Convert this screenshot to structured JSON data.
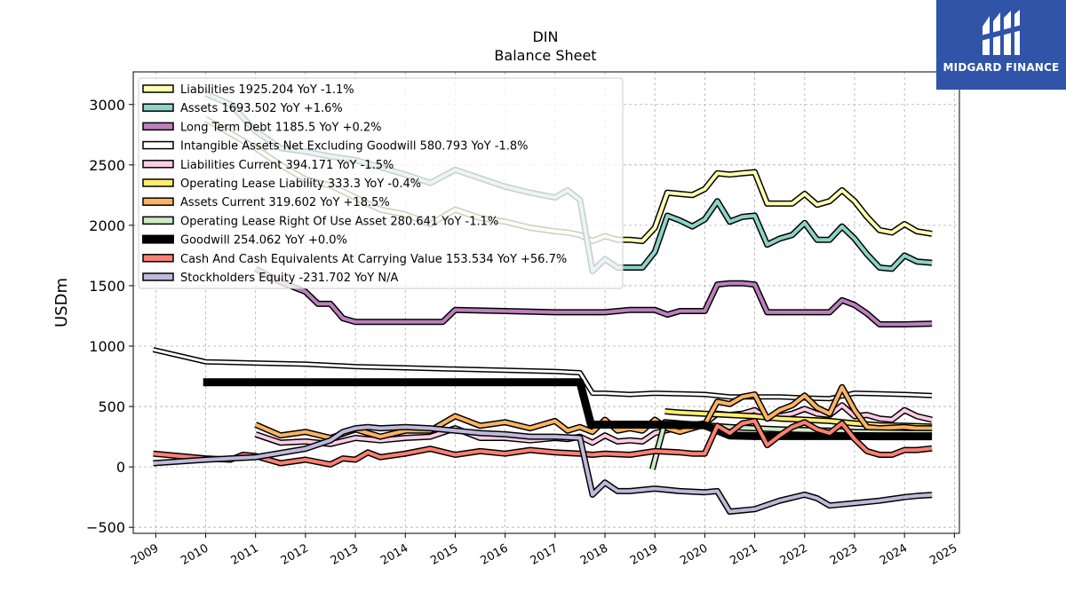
{
  "chart_data": {
    "type": "line",
    "title": "DIN",
    "subtitle": "Balance  Sheet",
    "ylabel": "USDm",
    "xlabel": "",
    "xlim": [
      2008.55,
      2025.1
    ],
    "ylim": [
      -550,
      3270
    ],
    "yticks": [
      -500,
      0,
      500,
      1000,
      1500,
      2000,
      2500,
      3000
    ],
    "ytick_labels": [
      "−500",
      "0",
      "500",
      "1000",
      "1500",
      "2000",
      "2500",
      "3000"
    ],
    "xticks": [
      2009,
      2010,
      2011,
      2012,
      2013,
      2014,
      2015,
      2016,
      2017,
      2018,
      2019,
      2020,
      2021,
      2022,
      2023,
      2024,
      2025
    ],
    "grid": true,
    "legend_position": "upper-left",
    "series": [
      {
        "name": "Liabilities",
        "legend": "Liabilities  1925.204 YoY -1.1%",
        "color": "#ffffb3",
        "width": 4,
        "x": [
          2010,
          2011,
          2011.5,
          2012,
          2012.5,
          2013,
          2013.5,
          2014,
          2014.5,
          2015,
          2015.5,
          2016,
          2016.5,
          2017,
          2017.25,
          2017.5,
          2017.75,
          2018,
          2018.25,
          2018.5,
          2018.75,
          2019,
          2019.25,
          2019.5,
          2019.75,
          2020,
          2020.25,
          2020.5,
          2020.75,
          2021,
          2021.25,
          2021.5,
          2021.75,
          2022,
          2022.25,
          2022.5,
          2022.75,
          2023,
          2023.25,
          2023.5,
          2023.75,
          2024,
          2024.25,
          2024.55
        ],
        "y": [
          2880,
          2640,
          2500,
          2380,
          2330,
          2230,
          2130,
          2090,
          2010,
          2130,
          2060,
          2030,
          1980,
          1950,
          1940,
          1920,
          1870,
          1910,
          1880,
          1880,
          1870,
          1980,
          2270,
          2260,
          2250,
          2300,
          2430,
          2420,
          2430,
          2440,
          2180,
          2180,
          2180,
          2260,
          2170,
          2200,
          2290,
          2200,
          2070,
          1960,
          1940,
          2010,
          1950,
          1930
        ]
      },
      {
        "name": "Assets",
        "legend": "Assets  1693.502 YoY +1.6%",
        "color": "#8dd3c7",
        "width": 4,
        "x": [
          2010,
          2010.5,
          2011,
          2011.5,
          2012,
          2012.5,
          2013,
          2013.5,
          2014,
          2014.5,
          2015,
          2015.5,
          2016,
          2016.5,
          2017,
          2017.25,
          2017.5,
          2017.75,
          2018,
          2018.25,
          2018.5,
          2018.75,
          2019,
          2019.25,
          2019.5,
          2019.75,
          2020,
          2020.25,
          2020.5,
          2020.75,
          2021,
          2021.25,
          2021.5,
          2021.75,
          2022,
          2022.25,
          2022.5,
          2022.75,
          2023,
          2023.25,
          2023.5,
          2023.75,
          2024,
          2024.25,
          2024.55
        ],
        "y": [
          3090,
          3000,
          2780,
          2640,
          2610,
          2570,
          2540,
          2480,
          2420,
          2350,
          2460,
          2390,
          2320,
          2270,
          2230,
          2290,
          2210,
          1620,
          1720,
          1650,
          1650,
          1650,
          1780,
          2080,
          2040,
          1990,
          2050,
          2200,
          2030,
          2070,
          2080,
          1840,
          1890,
          1920,
          2020,
          1880,
          1880,
          1990,
          1890,
          1760,
          1650,
          1640,
          1750,
          1700,
          1690
        ]
      },
      {
        "name": "Long Term Debt",
        "legend": "Long Term Debt  1185.5 YoY +0.2%",
        "color": "#bc80bd",
        "width": 4,
        "x": [
          2011,
          2011.5,
          2012,
          2012.25,
          2012.5,
          2012.75,
          2013,
          2013.5,
          2014,
          2014.5,
          2014.75,
          2015,
          2016,
          2017,
          2018,
          2018.5,
          2019,
          2019.25,
          2019.5,
          2020,
          2020.25,
          2020.5,
          2020.75,
          2021,
          2021.25,
          2021.5,
          2022,
          2022.5,
          2022.75,
          2023,
          2023.25,
          2023.5,
          2024,
          2024.55
        ],
        "y": [
          1640,
          1530,
          1450,
          1350,
          1350,
          1230,
          1200,
          1200,
          1200,
          1200,
          1200,
          1300,
          1290,
          1280,
          1280,
          1300,
          1300,
          1260,
          1290,
          1290,
          1510,
          1520,
          1520,
          1510,
          1280,
          1280,
          1280,
          1280,
          1380,
          1340,
          1270,
          1180,
          1180,
          1185
        ]
      },
      {
        "name": "Intangible Assets Net Excluding Goodwill",
        "legend": "Intangible Assets Net Excluding Goodwill  580.793 YoY -1.8%",
        "color": "#ffffff",
        "width": 3,
        "x": [
          2008.95,
          2010,
          2011,
          2012,
          2013,
          2014,
          2015,
          2016,
          2017,
          2017.5,
          2017.75,
          2018,
          2018.5,
          2019,
          2019.5,
          2020,
          2020.5,
          2021,
          2021.5,
          2022,
          2022.5,
          2023,
          2023.5,
          2024,
          2024.55
        ],
        "y": [
          970,
          870,
          860,
          850,
          830,
          820,
          810,
          800,
          790,
          780,
          610,
          610,
          600,
          610,
          605,
          600,
          580,
          580,
          580,
          570,
          565,
          610,
          605,
          600,
          590
        ]
      },
      {
        "name": "Liabilities Current",
        "legend": "Liabilities Current  394.171 YoY -1.5%",
        "color": "#fccde5",
        "width": 4,
        "x": [
          2011,
          2011.5,
          2012,
          2012.5,
          2013,
          2013.5,
          2014,
          2014.5,
          2015,
          2015.5,
          2016,
          2016.5,
          2017,
          2017.25,
          2017.5,
          2017.75,
          2018,
          2018.25,
          2018.5,
          2018.75,
          2019,
          2019.5,
          2020,
          2020.25,
          2020.5,
          2020.75,
          2021,
          2021.25,
          2021.5,
          2021.75,
          2022,
          2022.25,
          2022.5,
          2022.75,
          2023,
          2023.25,
          2023.5,
          2023.75,
          2024,
          2024.25,
          2024.55
        ],
        "y": [
          270,
          200,
          210,
          190,
          240,
          220,
          240,
          250,
          320,
          240,
          240,
          220,
          240,
          230,
          250,
          200,
          260,
          210,
          220,
          210,
          280,
          330,
          360,
          440,
          430,
          440,
          470,
          400,
          420,
          440,
          480,
          440,
          430,
          510,
          420,
          430,
          400,
          390,
          470,
          420,
          390
        ]
      },
      {
        "name": "Operating Lease Liability",
        "legend": "Operating Lease Liability  333.3 YoY -0.4%",
        "color": "#ffed6f",
        "width": 4,
        "x": [
          2019.2,
          2019.5,
          2020,
          2020.5,
          2021,
          2021.5,
          2022,
          2022.5,
          2023,
          2023.5,
          2024,
          2024.55
        ],
        "y": [
          460,
          450,
          440,
          430,
          420,
          400,
          390,
          380,
          360,
          345,
          340,
          333
        ]
      },
      {
        "name": "Assets Current",
        "legend": "Assets Current  319.602 YoY +18.5%",
        "color": "#fdb462",
        "width": 4,
        "x": [
          2011,
          2011.5,
          2012,
          2012.5,
          2013,
          2013.5,
          2014,
          2014.5,
          2015,
          2015.5,
          2016,
          2016.5,
          2017,
          2017.25,
          2017.5,
          2017.75,
          2018,
          2018.25,
          2018.5,
          2018.75,
          2019,
          2019.25,
          2019.5,
          2020,
          2020.25,
          2020.5,
          2020.75,
          2021,
          2021.25,
          2021.5,
          2021.75,
          2022,
          2022.25,
          2022.5,
          2022.75,
          2023,
          2023.25,
          2023.5,
          2024,
          2024.25,
          2024.55
        ],
        "y": [
          350,
          260,
          290,
          240,
          310,
          250,
          300,
          300,
          420,
          340,
          370,
          320,
          380,
          300,
          330,
          290,
          390,
          300,
          320,
          300,
          390,
          320,
          290,
          350,
          540,
          520,
          580,
          600,
          400,
          470,
          510,
          590,
          490,
          440,
          660,
          470,
          330,
          320,
          330,
          320,
          320
        ]
      },
      {
        "name": "Operating Lease Right Of Use Asset",
        "legend": "Operating Lease Right Of Use Asset  280.641 YoY -1.1%",
        "color": "#ccebc5",
        "width": 4,
        "x": [
          2018.95,
          2019.2,
          2019.5,
          2020,
          2020.5,
          2021,
          2021.5,
          2022,
          2022.5,
          2023,
          2023.5,
          2024,
          2024.55
        ],
        "y": [
          -20,
          370,
          360,
          345,
          330,
          320,
          310,
          305,
          300,
          290,
          285,
          282,
          281
        ]
      },
      {
        "name": "Goodwill",
        "legend": "Goodwill  254.062 YoY +0.0%",
        "color": "#000000",
        "width": 9,
        "x": [
          2009.95,
          2017.5,
          2017.72,
          2018.5,
          2019,
          2020,
          2020.5,
          2021,
          2021.5,
          2022,
          2022.5,
          2023,
          2023.5,
          2024,
          2024.55
        ],
        "y": [
          700,
          700,
          350,
          350,
          350,
          345,
          260,
          255,
          255,
          255,
          255,
          255,
          254,
          254,
          254
        ]
      },
      {
        "name": "Cash And Cash Equivalents At Carrying Value",
        "legend": "Cash And Cash Equivalents At Carrying Value  153.534 YoY +56.7%",
        "color": "#fb8072",
        "width": 4,
        "x": [
          2008.95,
          2010,
          2010.5,
          2010.75,
          2011,
          2011.5,
          2012,
          2012.5,
          2012.75,
          2013,
          2013.25,
          2013.5,
          2014,
          2014.5,
          2015,
          2015.5,
          2016,
          2016.5,
          2017,
          2017.5,
          2017.75,
          2018,
          2018.5,
          2019,
          2019.5,
          2019.75,
          2020,
          2020.25,
          2020.5,
          2020.75,
          2021,
          2021.25,
          2021.5,
          2021.75,
          2022,
          2022.25,
          2022.5,
          2022.75,
          2023,
          2023.25,
          2023.5,
          2023.75,
          2024,
          2024.25,
          2024.55
        ],
        "y": [
          110,
          70,
          60,
          100,
          90,
          30,
          60,
          20,
          70,
          60,
          120,
          80,
          110,
          150,
          100,
          130,
          110,
          140,
          120,
          110,
          100,
          110,
          100,
          130,
          120,
          110,
          110,
          340,
          280,
          360,
          380,
          180,
          260,
          330,
          370,
          310,
          280,
          360,
          230,
          130,
          100,
          100,
          140,
          140,
          153
        ]
      },
      {
        "name": "Stockholders Equity",
        "legend": "Stockholders Equity  -231.702 YoY N/A",
        "color": "#bebada",
        "width": 4,
        "x": [
          2008.95,
          2010,
          2011,
          2012,
          2012.5,
          2012.75,
          2013,
          2013.25,
          2013.5,
          2014,
          2014.5,
          2015,
          2015.5,
          2016,
          2016.5,
          2017,
          2017.5,
          2017.75,
          2018,
          2018.25,
          2018.5,
          2019,
          2019.5,
          2020,
          2020.25,
          2020.5,
          2021,
          2021.5,
          2022,
          2022.25,
          2022.5,
          2023,
          2023.5,
          2024,
          2024.25,
          2024.55
        ],
        "y": [
          30,
          60,
          80,
          150,
          220,
          290,
          320,
          330,
          320,
          330,
          320,
          300,
          280,
          270,
          250,
          250,
          240,
          -230,
          -130,
          -200,
          -200,
          -180,
          -200,
          -210,
          -200,
          -370,
          -350,
          -280,
          -230,
          -260,
          -320,
          -300,
          -280,
          -250,
          -240,
          -232
        ]
      }
    ]
  },
  "brand": {
    "name": "MIDGARD FINANCE",
    "color": "#2f54a8"
  }
}
